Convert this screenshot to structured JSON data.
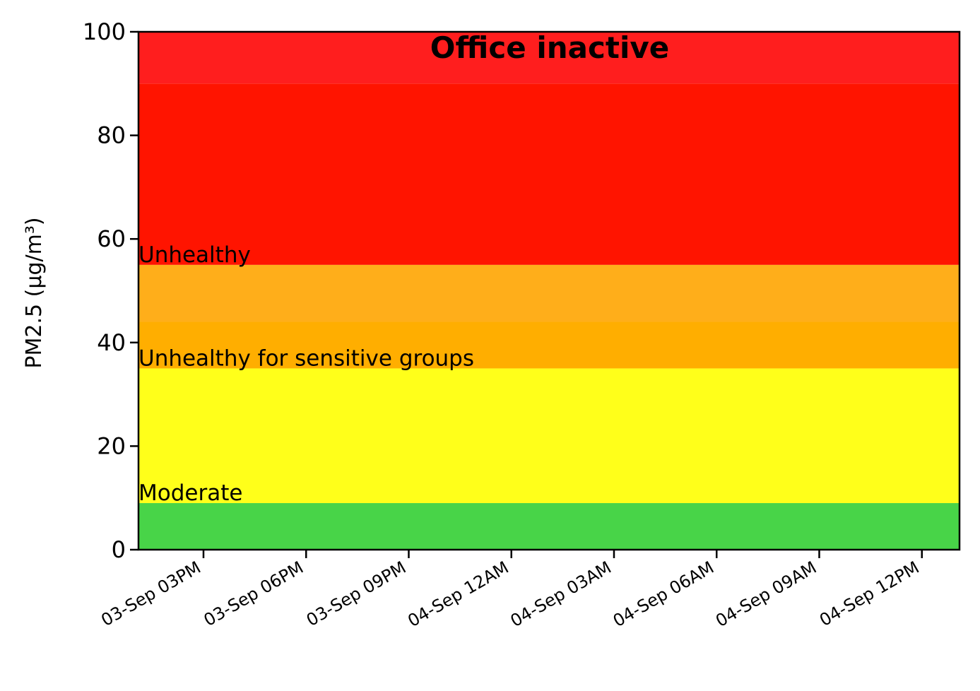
{
  "chart_data": {
    "type": "area",
    "title": "Office inactive",
    "xlabel": "",
    "ylabel": "PM2.5 (μg/m³)",
    "ylim": [
      0,
      100
    ],
    "yticks": [
      0,
      20,
      40,
      60,
      80,
      100
    ],
    "xlim_hours": [
      13.1,
      37.1
    ],
    "xticks": [
      {
        "hour": 15,
        "label": "03-Sep 03PM"
      },
      {
        "hour": 18,
        "label": "03-Sep 06PM"
      },
      {
        "hour": 21,
        "label": "03-Sep 09PM"
      },
      {
        "hour": 24,
        "label": "04-Sep 12AM"
      },
      {
        "hour": 27,
        "label": "04-Sep 03AM"
      },
      {
        "hour": 30,
        "label": "04-Sep 06AM"
      },
      {
        "hour": 33,
        "label": "04-Sep 09AM"
      },
      {
        "hour": 36,
        "label": "04-Sep 12PM"
      }
    ],
    "bands": [
      {
        "from": 0,
        "to": 9,
        "color": "#48d448",
        "label": ""
      },
      {
        "from": 9,
        "to": 35,
        "color": "#ffff1a",
        "label": "Moderate"
      },
      {
        "from": 35,
        "to": 44,
        "color": "#ffae00",
        "label": "Unhealthy for sensitive groups"
      },
      {
        "from": 44,
        "to": 55,
        "color": "#ffae1a",
        "label": ""
      },
      {
        "from": 55,
        "to": 90,
        "color": "#ff1400",
        "label": "Unhealthy"
      },
      {
        "from": 90,
        "to": 100,
        "color": "#ff1e1e",
        "label": ""
      }
    ],
    "grid": false,
    "legend": "none"
  }
}
